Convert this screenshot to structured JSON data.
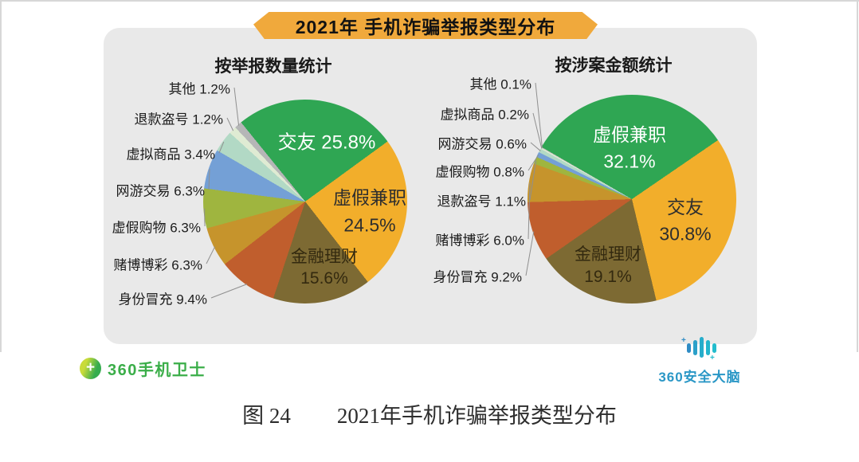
{
  "banner": {
    "title": "2021年 手机诈骗举报类型分布"
  },
  "caption": {
    "figure_label": "图 24",
    "text": "2021年手机诈骗举报类型分布"
  },
  "logos": {
    "left": "360手机卫士",
    "right": "360安全大脑",
    "left_plus": "+"
  },
  "colors": {
    "banner": "#F0A93C",
    "card_bg": "#E9E9E9",
    "leader_line": "#8F8F8F",
    "logo_left_green": "#3BAE49",
    "logo_right_blue": "#2A97C6",
    "palette": [
      "#2FA653",
      "#F2AE2B",
      "#7D6A33",
      "#C05E2D",
      "#C6942C",
      "#9FB53F",
      "#74A0D6",
      "#B2D9C5",
      "#DFEBD3",
      "#B5B6B7"
    ]
  },
  "chart_data": [
    {
      "type": "pie",
      "title": "按举报数量统计",
      "unit": "%",
      "start_angle_deg": -39,
      "legend": "none",
      "slices": [
        {
          "label": "交友",
          "value": 25.8,
          "display": "25.8%",
          "color": "#2FA653",
          "label_pos": "inside",
          "text_color": "#FFFFFF"
        },
        {
          "label": "虚假兼职",
          "value": 24.5,
          "display": "24.5%",
          "color": "#F2AE2B",
          "label_pos": "inside",
          "text_color": "#2E2E2E"
        },
        {
          "label": "金融理财",
          "value": 15.6,
          "display": "15.6%",
          "color": "#7D6A33",
          "label_pos": "inside",
          "text_color": "#33290F"
        },
        {
          "label": "身份冒充",
          "value": 9.4,
          "display": "9.4%",
          "color": "#C05E2D",
          "label_pos": "outside"
        },
        {
          "label": "赌博博彩",
          "value": 6.3,
          "display": "6.3%",
          "color": "#C6942C",
          "label_pos": "outside"
        },
        {
          "label": "虚假购物",
          "value": 6.3,
          "display": "6.3%",
          "color": "#9FB53F",
          "label_pos": "outside"
        },
        {
          "label": "网游交易",
          "value": 6.3,
          "display": "6.3%",
          "color": "#74A0D6",
          "label_pos": "outside"
        },
        {
          "label": "虚拟商品",
          "value": 3.4,
          "display": "3.4%",
          "color": "#B2D9C5",
          "label_pos": "outside"
        },
        {
          "label": "退款盗号",
          "value": 1.2,
          "display": "1.2%",
          "color": "#DFEBD3",
          "label_pos": "outside"
        },
        {
          "label": "其他",
          "value": 1.2,
          "display": "1.2%",
          "color": "#B5B6B7",
          "label_pos": "outside"
        }
      ]
    },
    {
      "type": "pie",
      "title": "按涉案金额统计",
      "unit": "%",
      "start_angle_deg": -60,
      "legend": "none",
      "slices": [
        {
          "label": "虚假兼职",
          "value": 32.1,
          "display": "32.1%",
          "color": "#2FA653",
          "label_pos": "inside",
          "text_color": "#FFFFFF"
        },
        {
          "label": "交友",
          "value": 30.8,
          "display": "30.8%",
          "color": "#F2AE2B",
          "label_pos": "inside",
          "text_color": "#2E2E2E"
        },
        {
          "label": "金融理财",
          "value": 19.1,
          "display": "19.1%",
          "color": "#7D6A33",
          "label_pos": "inside",
          "text_color": "#33290F"
        },
        {
          "label": "身份冒充",
          "value": 9.2,
          "display": "9.2%",
          "color": "#C05E2D",
          "label_pos": "outside"
        },
        {
          "label": "赌博博彩",
          "value": 6.0,
          "display": "6.0%",
          "color": "#C6942C",
          "label_pos": "outside"
        },
        {
          "label": "退款盗号",
          "value": 1.1,
          "display": "1.1%",
          "color": "#9FB53F",
          "label_pos": "outside"
        },
        {
          "label": "虚假购物",
          "value": 0.8,
          "display": "0.8%",
          "color": "#74A0D6",
          "label_pos": "outside"
        },
        {
          "label": "网游交易",
          "value": 0.6,
          "display": "0.6%",
          "color": "#B2D9C5",
          "label_pos": "outside"
        },
        {
          "label": "虚拟商品",
          "value": 0.2,
          "display": "0.2%",
          "color": "#DFEBD3",
          "label_pos": "outside"
        },
        {
          "label": "其他",
          "value": 0.1,
          "display": "0.1%",
          "color": "#B5B6B7",
          "label_pos": "outside"
        }
      ]
    }
  ]
}
